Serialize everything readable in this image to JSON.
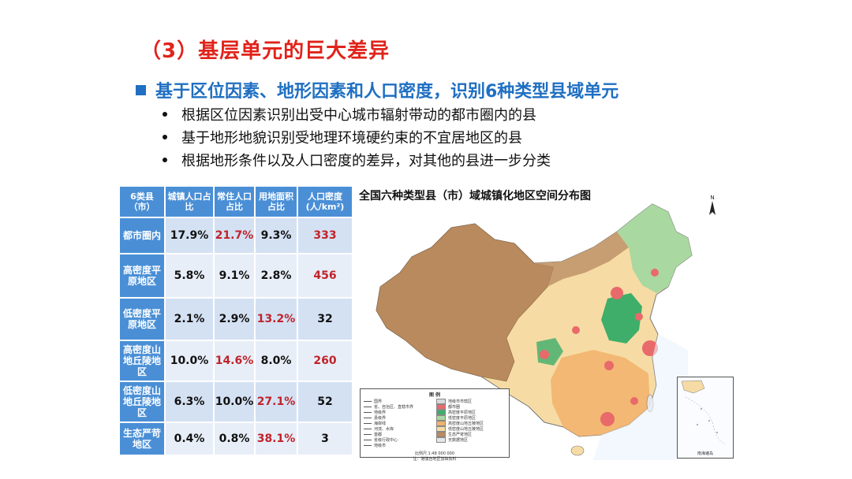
{
  "title": "（3）基层单元的巨大差异",
  "subtitle": "基于区位因素、地形因素和人口密度，识别6种类型县域单元",
  "bullets": [
    "根据区位因素识别出受中心城市辐射带动的都市圈内的县",
    "基于地形地貌识别受地理环境硬约束的不宜居地区的县",
    "根据地形条件以及人口密度的差异，对其他的县进一步分类"
  ],
  "table": {
    "headers": [
      "6类县（市）",
      "城镇人口占比",
      "常住人口占比",
      "用地面积占比",
      "人口密度(人/km²)"
    ],
    "rows": [
      {
        "cat": "都市圈内",
        "v1": "17.9%",
        "v2": "21.7%",
        "v3": "9.3%",
        "v4": "333"
      },
      {
        "cat": "高密度平原地区",
        "v1": "5.8%",
        "v2": "9.1%",
        "v3": "2.8%",
        "v4": "456"
      },
      {
        "cat": "低密度平原地区",
        "v1": "2.1%",
        "v2": "2.9%",
        "v3": "13.2%",
        "v4": "32"
      },
      {
        "cat": "高密度山地丘陵地区",
        "v1": "10.0%",
        "v2": "14.6%",
        "v3": "8.0%",
        "v4": "260"
      },
      {
        "cat": "低密度山地丘陵地区",
        "v1": "6.3%",
        "v2": "10.0%",
        "v3": "27.1%",
        "v4": "52"
      },
      {
        "cat": "生态严苛地区",
        "v1": "0.4%",
        "v2": "0.8%",
        "v3": "38.1%",
        "v4": "3"
      }
    ],
    "highlight_color": "#c0232a",
    "header_color": "#4a8fd6"
  },
  "map": {
    "title": "全国六种类型县（市）域城镇化地区空间分布图",
    "north": "N",
    "inset_label": "南海诸岛",
    "legend": {
      "heading": "图  例",
      "left_items": [
        "国界",
        "省、自治区、直辖市界",
        "地级界",
        "县级界",
        "海岸线",
        "河流、水库",
        "首都",
        "省级行政中心",
        "地级市"
      ],
      "right_items": [
        "地级市市辖区",
        "都市圈",
        "高密度平原地区",
        "低密度平原地区",
        "高密度山地丘陵地区",
        "低密度山地丘陵地区",
        "生态严苛地区",
        "无数据地区"
      ],
      "scale": "比例尺 1:48 000 000",
      "note": "注：港澳台地区暂缺资料"
    },
    "colors": {
      "metro": "#e86a6a",
      "high_plain": "#3fae6a",
      "low_plain": "#a9d8a0",
      "high_hill": "#f2b26b",
      "low_hill": "#f6dca4",
      "eco": "#b98a5e",
      "nodata": "#e6e6e6"
    }
  }
}
